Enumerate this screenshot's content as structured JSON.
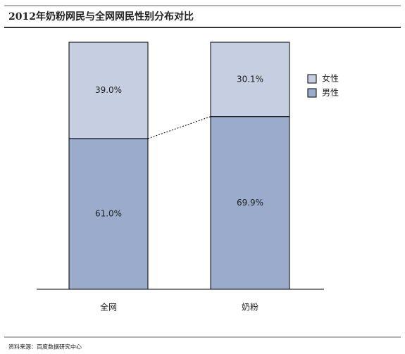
{
  "chart_data": {
    "type": "stacked-bar",
    "title": "2012年奶粉网民与全网网民性别分布对比",
    "categories": [
      "全网",
      "奶粉"
    ],
    "series": [
      {
        "name": "女性",
        "color": "#c5cfe1",
        "values": [
          39.0,
          30.1
        ],
        "value_labels": [
          "39.0%",
          "30.1%"
        ]
      },
      {
        "name": "男性",
        "color": "#9aabcb",
        "values": [
          61.0,
          69.9
        ],
        "value_labels": [
          "61.0%",
          "69.9%"
        ]
      }
    ],
    "legend": "right",
    "source": "资料来源：百度数据研究中心"
  }
}
